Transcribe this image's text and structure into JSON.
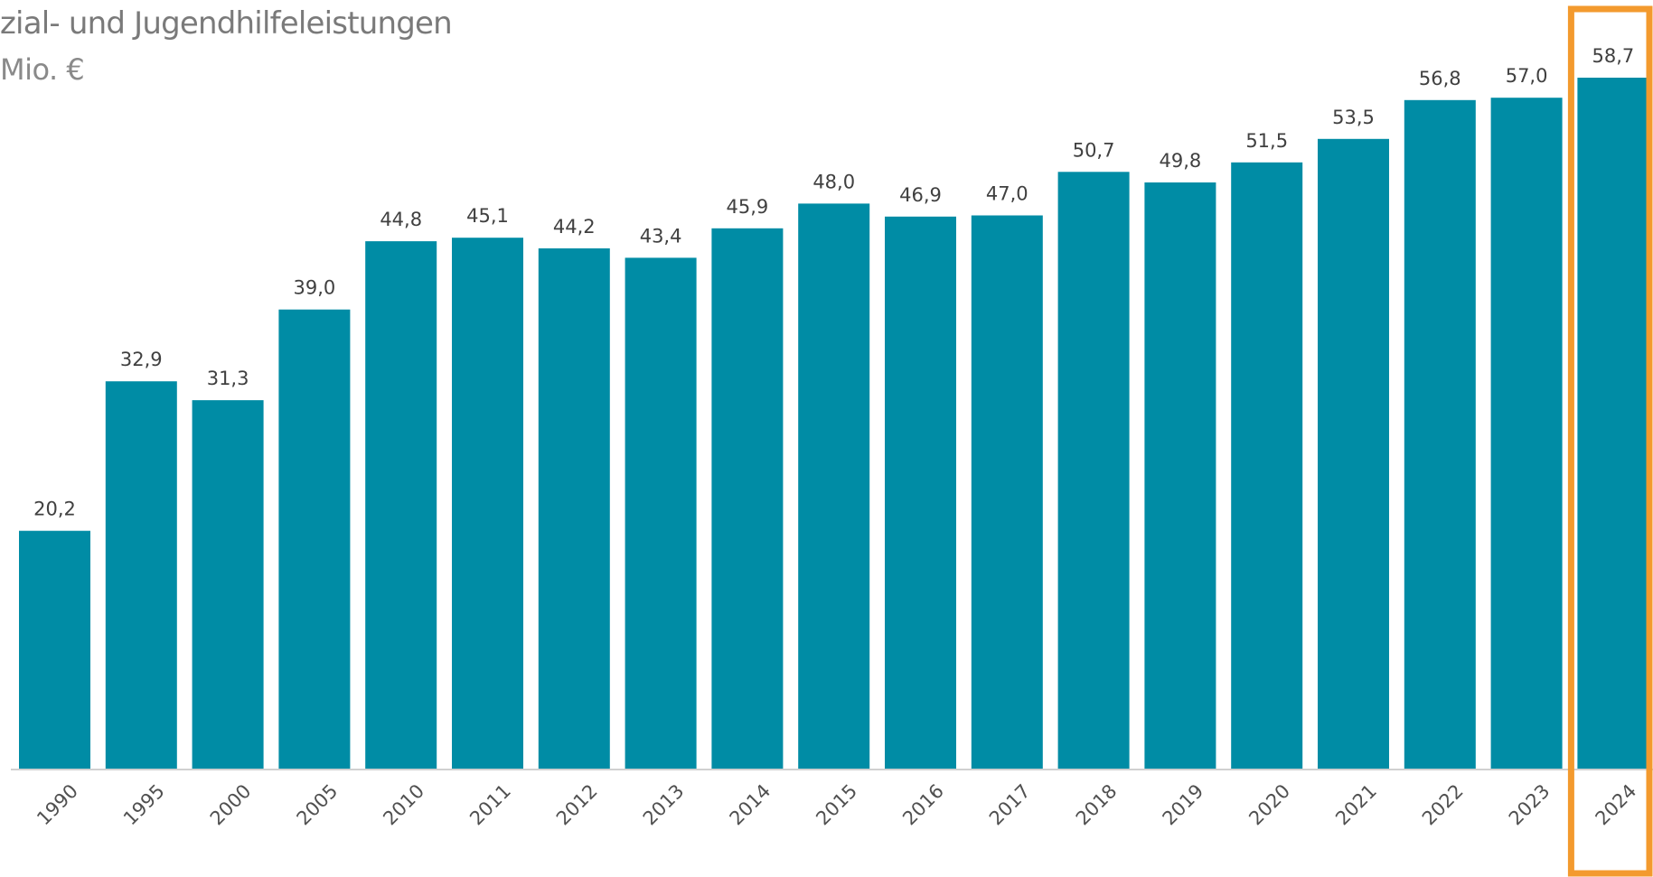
{
  "chart_data": {
    "type": "bar",
    "title": "zial- und Jugendhilfeleistungen",
    "subtitle": "Mio. €",
    "xlabel": "",
    "ylabel": "",
    "categories": [
      "1990",
      "1995",
      "2000",
      "2005",
      "2010",
      "2011",
      "2012",
      "2013",
      "2014",
      "2015",
      "2016",
      "2017",
      "2018",
      "2019",
      "2020",
      "2021",
      "2022",
      "2023",
      "2024"
    ],
    "values": [
      20.2,
      32.9,
      31.3,
      39.0,
      44.8,
      45.1,
      44.2,
      43.4,
      45.9,
      48.0,
      46.9,
      47.0,
      50.7,
      49.8,
      51.5,
      53.5,
      56.8,
      57.0,
      58.7
    ],
    "value_labels": [
      "20,2",
      "32,9",
      "31,3",
      "39,0",
      "44,8",
      "45,1",
      "44,2",
      "43,4",
      "45,9",
      "48,0",
      "46,9",
      "47,0",
      "50,7",
      "49,8",
      "51,5",
      "53,5",
      "56,8",
      "57,0",
      "58,7"
    ],
    "ylim": [
      0,
      58.7
    ],
    "grid": false,
    "legend": "none",
    "highlighted_category": "2024",
    "colors": {
      "bar": "#008ca5",
      "highlight_frame": "#f39a2e",
      "axis": "#d0d0d0"
    }
  }
}
